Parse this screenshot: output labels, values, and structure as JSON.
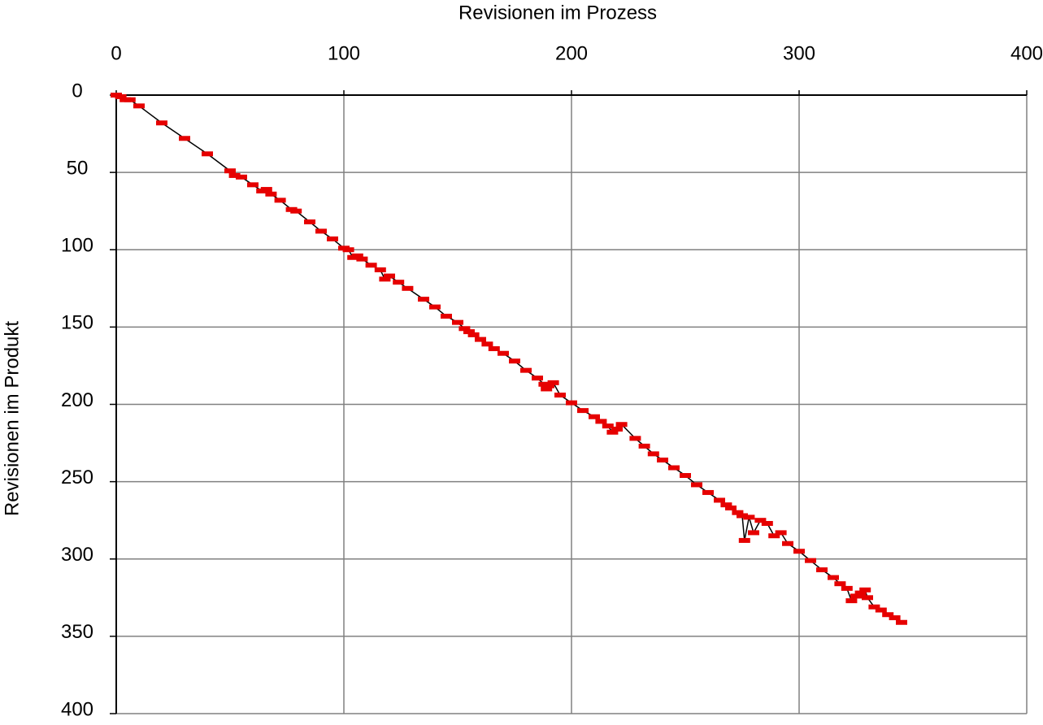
{
  "chart_data": {
    "type": "line",
    "xlabel": "Revisionen im Prozess",
    "ylabel": "Revisionen im Produkt",
    "x": [
      0,
      2,
      4,
      6,
      10,
      20,
      30,
      40,
      50,
      52,
      55,
      60,
      64,
      66,
      68,
      72,
      77,
      79,
      85,
      90,
      95,
      100,
      102,
      104,
      106,
      108,
      112,
      116,
      118,
      120,
      124,
      128,
      135,
      140,
      145,
      150,
      153,
      155,
      157,
      160,
      163,
      166,
      170,
      175,
      180,
      185,
      188,
      189,
      190,
      192,
      195,
      200,
      205,
      210,
      213,
      216,
      218,
      220,
      222,
      228,
      232,
      236,
      240,
      245,
      250,
      255,
      260,
      265,
      268,
      270,
      273,
      275,
      276,
      278,
      280,
      283,
      286,
      289,
      292,
      295,
      300,
      305,
      310,
      315,
      318,
      321,
      323,
      325,
      327,
      329,
      330,
      333,
      336,
      339,
      342,
      345
    ],
    "series": [
      {
        "color": "#e60000",
        "line_color": "#000000",
        "values": [
          0,
          1,
          3,
          3,
          7,
          18,
          28,
          38,
          49,
          52,
          53,
          58,
          62,
          61,
          64,
          68,
          74,
          75,
          82,
          88,
          93,
          99,
          100,
          105,
          104,
          106,
          110,
          113,
          119,
          117,
          121,
          125,
          132,
          137,
          143,
          147,
          151,
          153,
          155,
          158,
          161,
          164,
          167,
          172,
          178,
          183,
          187,
          190,
          188,
          186,
          194,
          199,
          204,
          208,
          211,
          214,
          218,
          216,
          213,
          222,
          227,
          232,
          236,
          241,
          246,
          252,
          257,
          262,
          265,
          267,
          270,
          272,
          288,
          273,
          283,
          275,
          277,
          285,
          283,
          290,
          295,
          301,
          307,
          312,
          316,
          319,
          327,
          324,
          322,
          320,
          325,
          331,
          333,
          336,
          338,
          341
        ]
      }
    ],
    "xlim": [
      0,
      400
    ],
    "ylim": [
      0,
      400
    ],
    "xticks": [
      0,
      100,
      200,
      300,
      400
    ],
    "yticks": [
      0,
      50,
      100,
      150,
      200,
      250,
      300,
      350,
      400
    ],
    "y_inverted": true,
    "x_axis_position": "top",
    "grid": true
  }
}
